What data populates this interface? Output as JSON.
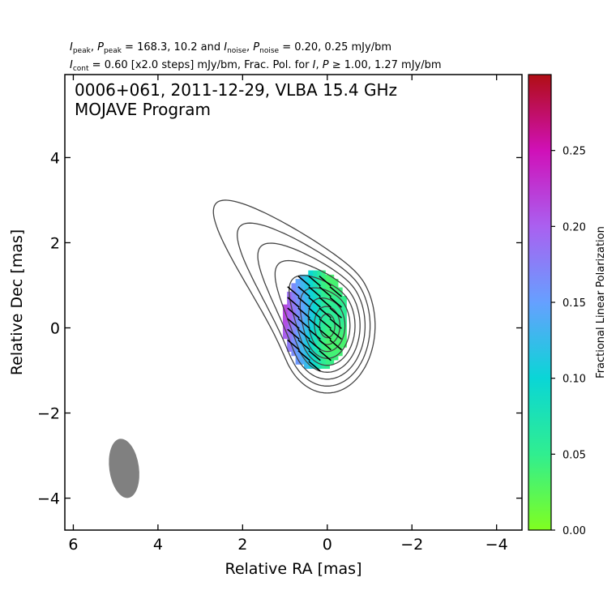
{
  "header": {
    "line1": [
      {
        "t": "I",
        "i": true
      },
      {
        "t": "peak",
        "s": true
      },
      {
        "t": ", "
      },
      {
        "t": "P",
        "i": true
      },
      {
        "t": "peak",
        "s": true
      },
      {
        "t": " = 168.3, 10.2 and "
      },
      {
        "t": "I",
        "i": true
      },
      {
        "t": "noise",
        "s": true
      },
      {
        "t": ", "
      },
      {
        "t": "P",
        "i": true
      },
      {
        "t": "noise",
        "s": true
      },
      {
        "t": " = 0.20, 0.25 mJy/bm"
      }
    ],
    "line2": [
      {
        "t": "I",
        "i": true
      },
      {
        "t": "cont",
        "s": true
      },
      {
        "t": " = 0.60 [x2.0 steps] mJy/bm, Frac. Pol. for "
      },
      {
        "t": "I",
        "i": true
      },
      {
        "t": ", "
      },
      {
        "t": "P",
        "i": true
      },
      {
        "t": " ≥ 1.00, 1.27 mJy/bm"
      }
    ]
  },
  "title": {
    "line1": "0006+061, 2011-12-29, VLBA 15.4 GHz",
    "line2": "MOJAVE Program"
  },
  "chart_data": {
    "type": "heatmap",
    "xlabel": "Relative RA [mas]",
    "ylabel": "Relative Dec [mas]",
    "xlim": [
      6.2,
      -4.6
    ],
    "ylim": [
      -4.75,
      5.95
    ],
    "xticks": [
      6,
      4,
      2,
      0,
      -2,
      -4
    ],
    "yticks": [
      4,
      2,
      0,
      -2,
      -4
    ],
    "contours_mjy_per_beam": [
      0.6,
      1.2,
      2.4,
      4.8,
      9.6,
      19.2,
      38.4,
      76.8,
      153.6
    ],
    "intensity_peak": {
      "x": 0.0,
      "y": 0.05
    },
    "core_extent": {
      "x_range": [
        -0.5,
        1.05
      ],
      "y_range": [
        -1.0,
        1.35
      ]
    },
    "beam": {
      "x": 4.8,
      "y": -3.3,
      "major_mas": 1.4,
      "minor_mas": 0.7,
      "pa_deg": -8,
      "color": "#808080"
    },
    "colorbar": {
      "label": "Fractional Linear Polarization",
      "range": [
        0.0,
        0.3
      ],
      "ticks": [
        "0.00",
        "0.05",
        "0.10",
        "0.15",
        "0.20",
        "0.25"
      ],
      "colors": [
        "#80ff20",
        "#30ee90",
        "#0ad6d6",
        "#66a0ff",
        "#aa60f0",
        "#d010b8",
        "#b00e14"
      ]
    },
    "evpa_direction_deg_from_north": 50,
    "contour_color": "#444444"
  }
}
